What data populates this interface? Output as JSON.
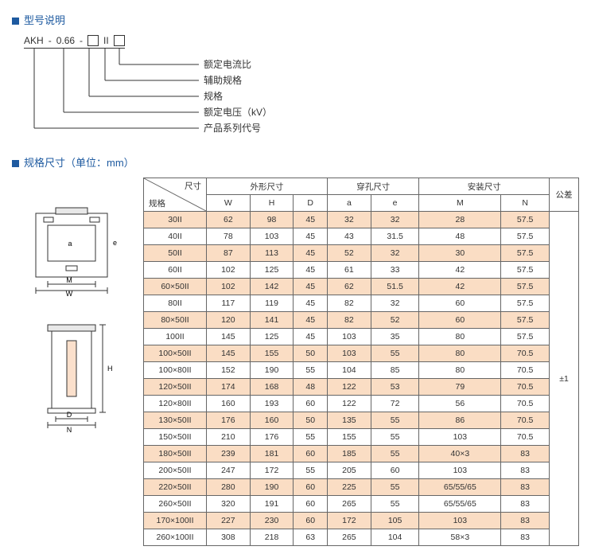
{
  "section1": {
    "title": "型号说明"
  },
  "model": {
    "p1": "AKH",
    "p2": "0.66",
    "p3": "II",
    "lbl1": "额定电流比",
    "lbl2": "辅助规格",
    "lbl3": "规格",
    "lbl4": "额定电压（kV）",
    "lbl5": "产品系列代号"
  },
  "section2": {
    "title": "规格尺寸（单位：mm）"
  },
  "table": {
    "corner_top": "尺寸",
    "corner_bottom": "规格",
    "group1": "外形尺寸",
    "group2": "穿孔尺寸",
    "group3": "安装尺寸",
    "tol_header": "公差",
    "cols": [
      "W",
      "H",
      "D",
      "a",
      "e",
      "M",
      "N"
    ],
    "tolerance": "±1",
    "rows": [
      [
        "30II",
        "62",
        "98",
        "45",
        "32",
        "32",
        "28",
        "57.5"
      ],
      [
        "40II",
        "78",
        "103",
        "45",
        "43",
        "31.5",
        "48",
        "57.5"
      ],
      [
        "50II",
        "87",
        "113",
        "45",
        "52",
        "32",
        "30",
        "57.5"
      ],
      [
        "60II",
        "102",
        "125",
        "45",
        "61",
        "33",
        "42",
        "57.5"
      ],
      [
        "60×50II",
        "102",
        "142",
        "45",
        "62",
        "51.5",
        "42",
        "57.5"
      ],
      [
        "80II",
        "117",
        "119",
        "45",
        "82",
        "32",
        "60",
        "57.5"
      ],
      [
        "80×50II",
        "120",
        "141",
        "45",
        "82",
        "52",
        "60",
        "57.5"
      ],
      [
        "100II",
        "145",
        "125",
        "45",
        "103",
        "35",
        "80",
        "57.5"
      ],
      [
        "100×50II",
        "145",
        "155",
        "50",
        "103",
        "55",
        "80",
        "70.5"
      ],
      [
        "100×80II",
        "152",
        "190",
        "55",
        "104",
        "85",
        "80",
        "70.5"
      ],
      [
        "120×50II",
        "174",
        "168",
        "48",
        "122",
        "53",
        "79",
        "70.5"
      ],
      [
        "120×80II",
        "160",
        "193",
        "60",
        "122",
        "72",
        "56",
        "70.5"
      ],
      [
        "130×50II",
        "176",
        "160",
        "50",
        "135",
        "55",
        "86",
        "70.5"
      ],
      [
        "150×50II",
        "210",
        "176",
        "55",
        "155",
        "55",
        "103",
        "70.5"
      ],
      [
        "180×50II",
        "239",
        "181",
        "60",
        "185",
        "55",
        "40×3",
        "83"
      ],
      [
        "200×50II",
        "247",
        "172",
        "55",
        "205",
        "60",
        "103",
        "83"
      ],
      [
        "220×50II",
        "280",
        "190",
        "60",
        "225",
        "55",
        "65/55/65",
        "83"
      ],
      [
        "260×50II",
        "320",
        "191",
        "60",
        "265",
        "55",
        "65/55/65",
        "83"
      ],
      [
        "170×100II",
        "227",
        "230",
        "60",
        "172",
        "105",
        "103",
        "83"
      ],
      [
        "260×100II",
        "308",
        "218",
        "63",
        "265",
        "104",
        "58×3",
        "83"
      ]
    ]
  },
  "diagram_labels": {
    "a": "a",
    "M": "M",
    "W": "W",
    "D": "D",
    "N": "N",
    "H": "H",
    "e": "e"
  }
}
